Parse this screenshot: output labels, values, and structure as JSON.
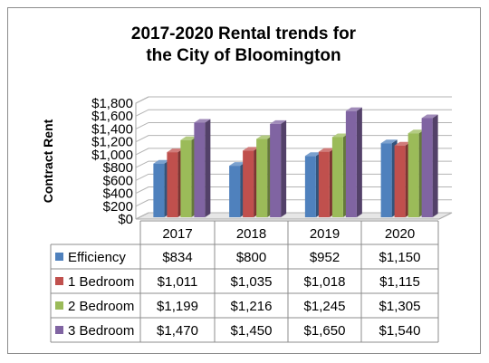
{
  "chart_data": {
    "type": "bar",
    "style": "3d-clustered-column-with-data-table",
    "title_lines": [
      "2017-2020 Rental trends for",
      "the City of Bloomington"
    ],
    "ylabel": "Contract Rent",
    "xlabel": "",
    "ylim": [
      0,
      1800
    ],
    "y_ticks": [
      0,
      200,
      400,
      600,
      800,
      1000,
      1200,
      1400,
      1600,
      1800
    ],
    "y_tick_labels": [
      "$0",
      "$200",
      "$400",
      "$600",
      "$800",
      "$1,000",
      "$1,200",
      "$1,400",
      "$1,600",
      "$1,800"
    ],
    "grid": true,
    "categories": [
      "2017",
      "2018",
      "2019",
      "2020"
    ],
    "series": [
      {
        "name": "Efficiency",
        "color": "#4f81bd",
        "values": [
          834,
          800,
          952,
          1150
        ],
        "labels": [
          "$834",
          "$800",
          "$952",
          "$1,150"
        ]
      },
      {
        "name": "1 Bedroom",
        "color": "#c0504d",
        "values": [
          1011,
          1035,
          1018,
          1115
        ],
        "labels": [
          "$1,011",
          "$1,035",
          "$1,018",
          "$1,115"
        ]
      },
      {
        "name": "2 Bedroom",
        "color": "#9bbb59",
        "values": [
          1199,
          1216,
          1245,
          1305
        ],
        "labels": [
          "$1,199",
          "$1,216",
          "$1,245",
          "$1,305"
        ]
      },
      {
        "name": "3 Bedroom",
        "color": "#8064a2",
        "values": [
          1470,
          1450,
          1650,
          1540
        ],
        "labels": [
          "$1,470",
          "$1,450",
          "$1,650",
          "$1,540"
        ]
      }
    ]
  }
}
